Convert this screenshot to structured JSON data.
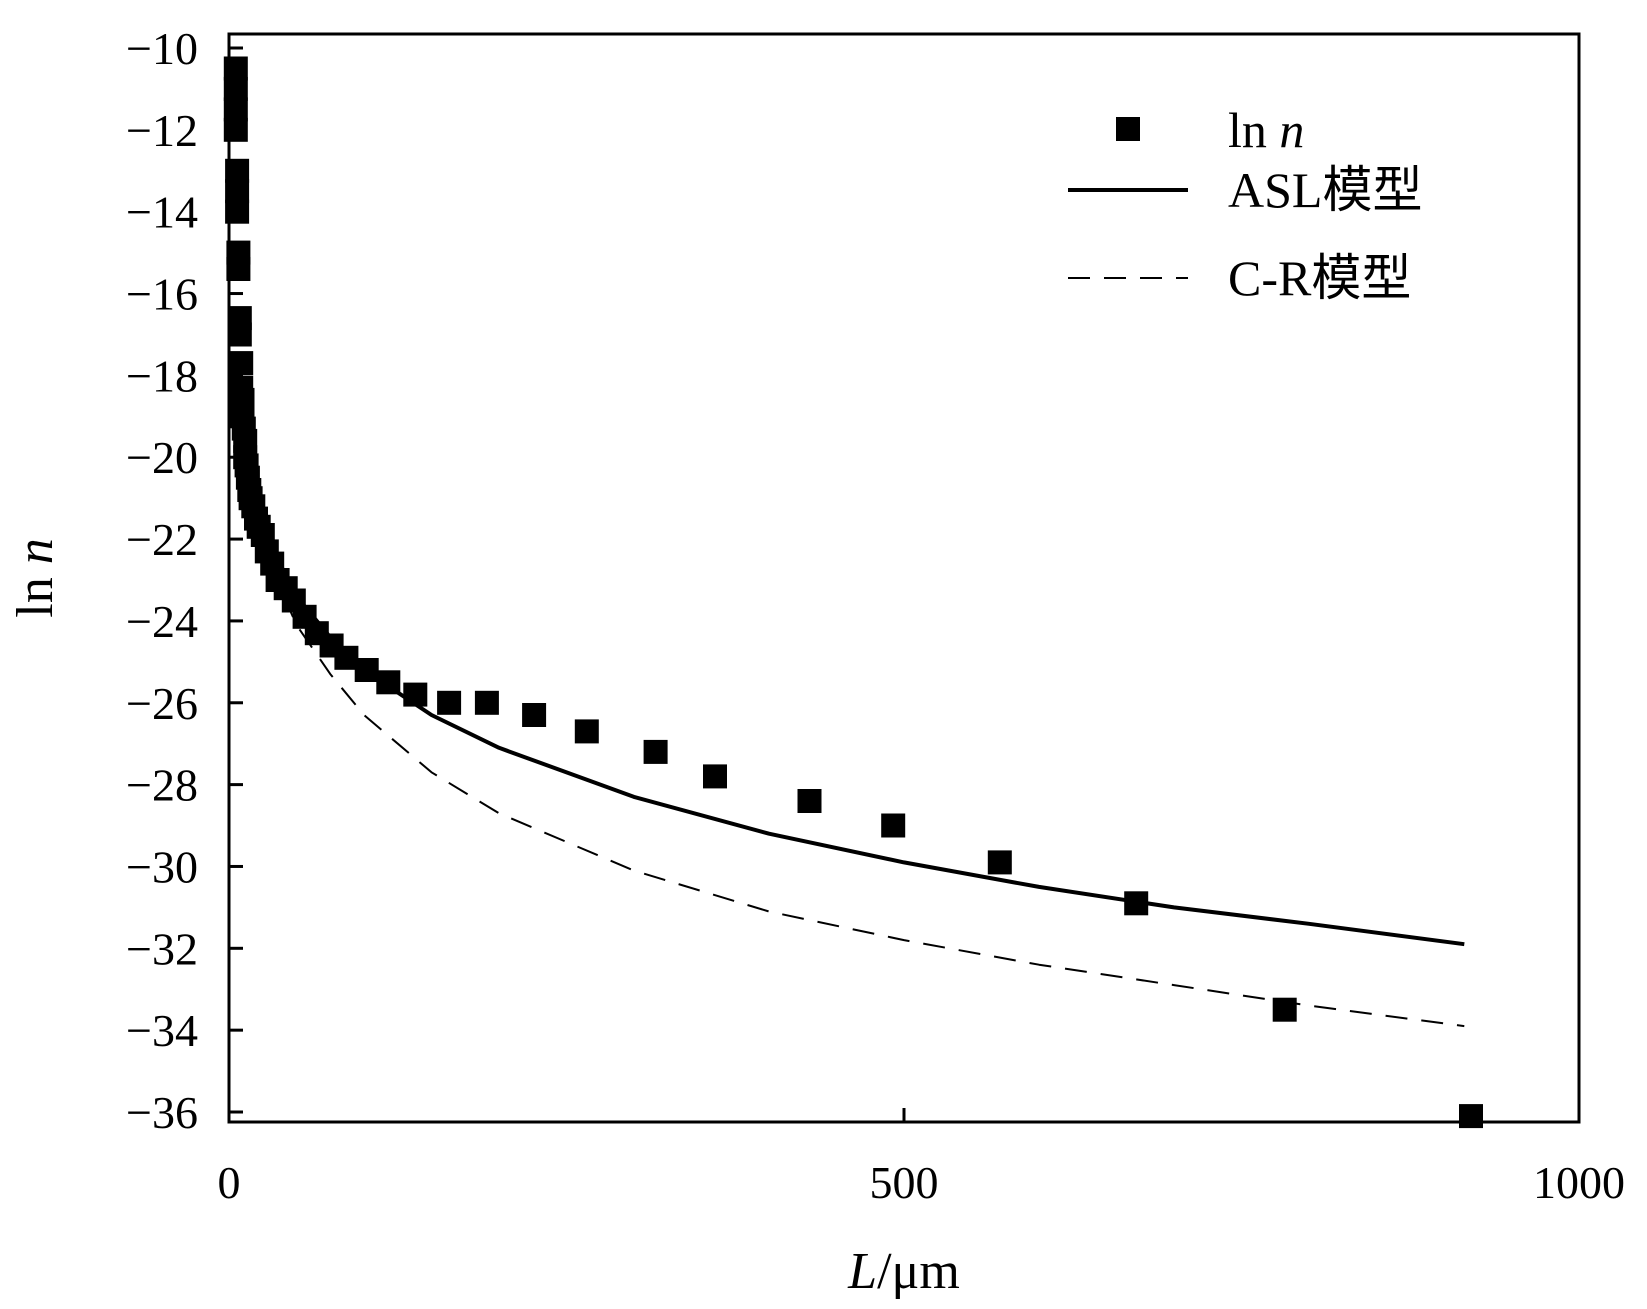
{
  "chart_data": {
    "type": "scatter",
    "xlabel": "L/μm",
    "xlabel_italic": "L",
    "xlabel_unit": "/μm",
    "ylabel": "ln n",
    "ylabel_plain": "ln ",
    "ylabel_italic": "n",
    "xlim": [
      0,
      1000
    ],
    "ylim": [
      -36.3,
      -10
    ],
    "x_ticks": [
      0,
      500,
      1000
    ],
    "y_ticks": [
      -10,
      -12,
      -14,
      -16,
      -18,
      -20,
      -22,
      -24,
      -26,
      -28,
      -30,
      -32,
      -34,
      -36
    ],
    "grid": false,
    "legend_position": "top-right",
    "series": [
      {
        "name": "ln n",
        "name_plain": "ln ",
        "name_italic": "n",
        "type": "scatter",
        "marker": "square",
        "color": "#000000",
        "x": [
          5,
          5,
          5,
          5,
          6,
          6,
          6,
          7,
          7,
          8,
          8,
          9,
          9,
          10,
          10,
          11,
          12,
          12,
          13,
          14,
          15,
          16,
          18,
          20,
          22,
          25,
          28,
          32,
          36,
          42,
          48,
          56,
          65,
          76,
          87,
          102,
          118,
          138,
          163,
          191,
          226,
          265,
          316,
          360,
          430,
          492,
          571,
          672,
          782,
          920
        ],
        "y": [
          -10.5,
          -11.0,
          -11.5,
          -12.0,
          -13.0,
          -13.5,
          -14.0,
          -15.0,
          -15.4,
          -16.6,
          -17.0,
          -17.7,
          -18.3,
          -18.6,
          -19.0,
          -19.3,
          -19.6,
          -20.0,
          -20.2,
          -20.5,
          -20.8,
          -21.0,
          -21.2,
          -21.5,
          -21.7,
          -21.9,
          -22.3,
          -22.6,
          -23.0,
          -23.2,
          -23.5,
          -23.9,
          -24.3,
          -24.6,
          -24.9,
          -25.2,
          -25.5,
          -25.8,
          -26.0,
          -26.0,
          -26.3,
          -26.7,
          -27.2,
          -27.8,
          -28.4,
          -29.0,
          -29.9,
          -30.9,
          -33.5,
          -36.1
        ]
      },
      {
        "name": "ASL模型",
        "type": "line",
        "style": "solid",
        "color": "#000000",
        "x": [
          5,
          10,
          20,
          30,
          50,
          75,
          100,
          150,
          200,
          300,
          400,
          500,
          600,
          700,
          800,
          915
        ],
        "y": [
          -18.2,
          -19.6,
          -21.1,
          -22.1,
          -23.4,
          -24.4,
          -25.2,
          -26.3,
          -27.1,
          -28.3,
          -29.2,
          -29.9,
          -30.5,
          -31.0,
          -31.4,
          -31.9
        ]
      },
      {
        "name": "C-R模型",
        "type": "line",
        "style": "dashed",
        "color": "#000000",
        "x": [
          5,
          10,
          20,
          30,
          50,
          75,
          100,
          150,
          200,
          300,
          400,
          500,
          600,
          700,
          800,
          915
        ],
        "y": [
          -18.3,
          -19.8,
          -21.5,
          -22.6,
          -24.1,
          -25.3,
          -26.3,
          -27.7,
          -28.7,
          -30.1,
          -31.1,
          -31.8,
          -32.4,
          -32.9,
          -33.4,
          -33.9
        ]
      }
    ]
  }
}
